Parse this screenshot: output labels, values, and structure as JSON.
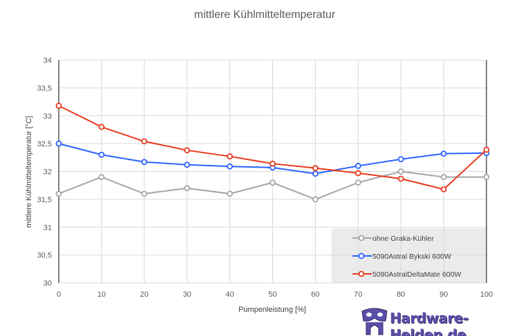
{
  "chart_data": {
    "type": "line",
    "title": "mittlere Kühlmitteltemperatur",
    "xlabel": "Pumpenleistung [%]",
    "ylabel": "mittlere Kühlmitteltemperatur  [°C]",
    "x": [
      0,
      10,
      20,
      30,
      40,
      50,
      60,
      70,
      80,
      90,
      100
    ],
    "xlim": [
      0,
      100
    ],
    "ylim": [
      30,
      34
    ],
    "xticks": [
      "0",
      "10",
      "20",
      "30",
      "40",
      "50",
      "60",
      "70",
      "80",
      "90",
      "100"
    ],
    "yticks": [
      {
        "v": 30,
        "label": "30"
      },
      {
        "v": 30.5,
        "label": "30,5"
      },
      {
        "v": 31,
        "label": "31"
      },
      {
        "v": 31.5,
        "label": "31,5"
      },
      {
        "v": 32,
        "label": "32"
      },
      {
        "v": 32.5,
        "label": "32,5"
      },
      {
        "v": 33,
        "label": "33"
      },
      {
        "v": 33.5,
        "label": "33,5"
      },
      {
        "v": 34,
        "label": "34"
      }
    ],
    "grid": true,
    "legend_position": "bottom-right",
    "series": [
      {
        "name": "ohne Graka-Kühler",
        "color": "#a5a5a5",
        "values": [
          31.6,
          31.9,
          31.6,
          31.7,
          31.6,
          31.8,
          31.5,
          31.8,
          32.0,
          31.9,
          31.9
        ]
      },
      {
        "name": "5090Astral Bykski 600W",
        "color": "#2962ff",
        "values": [
          32.5,
          32.3,
          32.17,
          32.12,
          32.09,
          32.07,
          31.96,
          32.1,
          32.22,
          32.32,
          32.33
        ]
      },
      {
        "name": "5090AstralDeltaMate 600W",
        "color": "#e8391d",
        "values": [
          33.18,
          32.8,
          32.54,
          32.38,
          32.27,
          32.14,
          32.06,
          31.97,
          31.87,
          31.68,
          32.39
        ]
      }
    ]
  },
  "watermark": "Hardware-Helden.de"
}
